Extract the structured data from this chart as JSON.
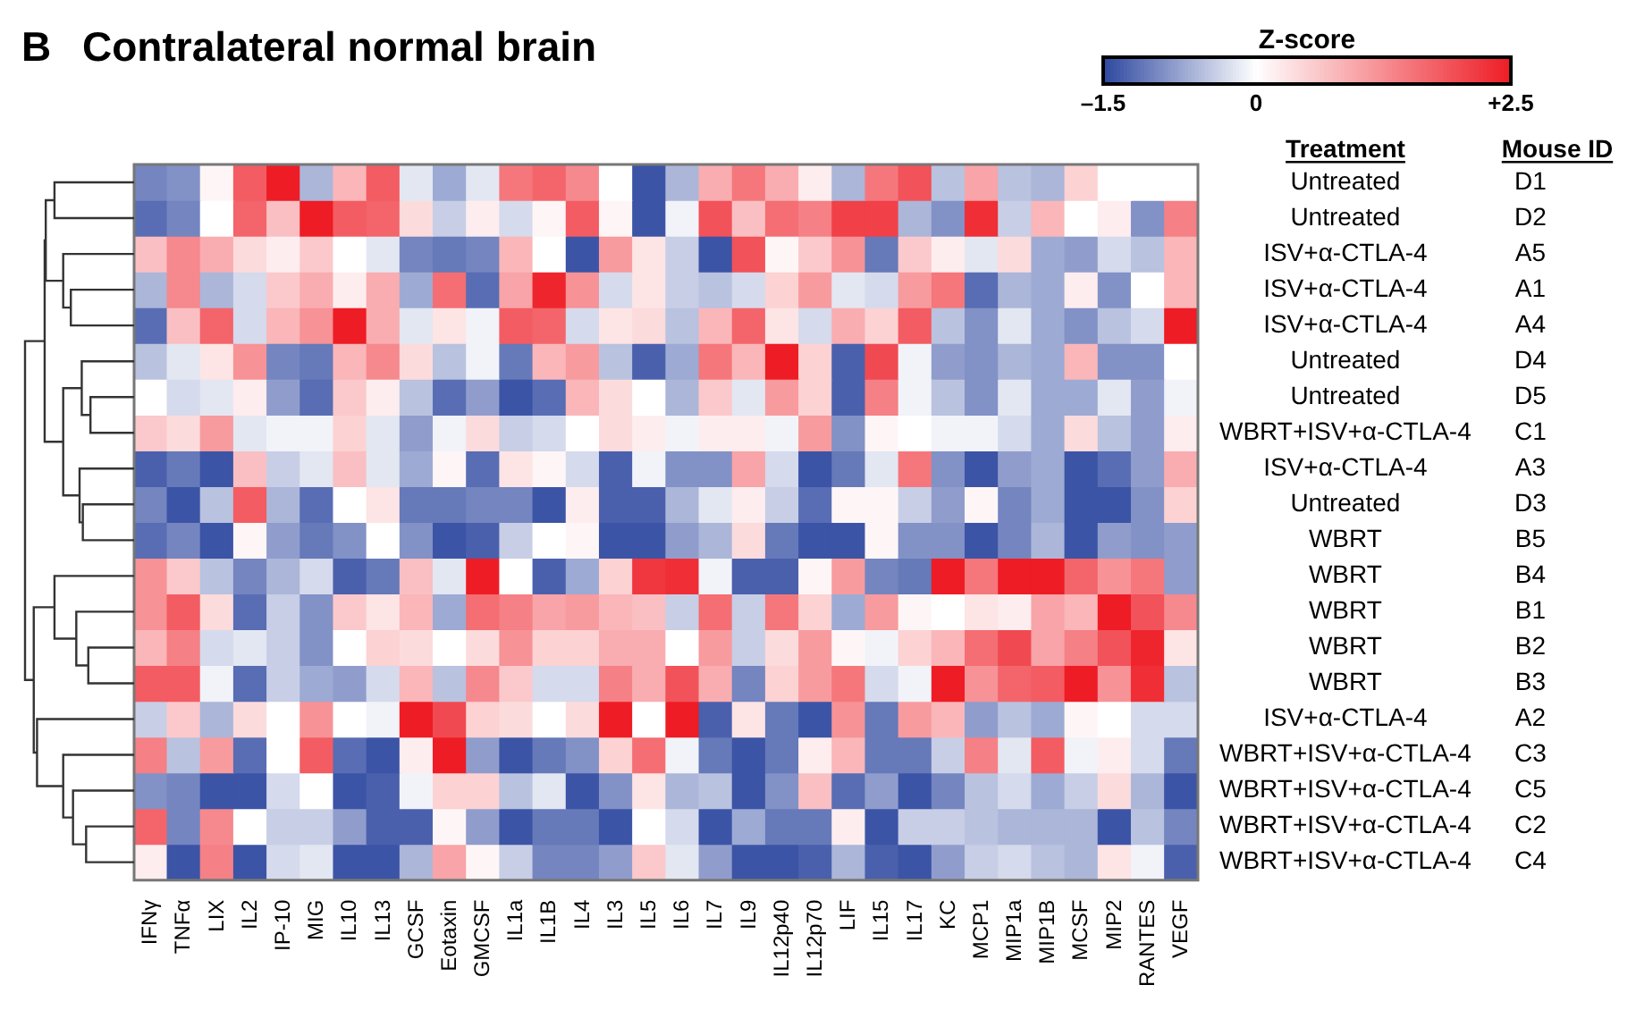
{
  "chart_data": {
    "type": "heatmap",
    "title": "Contralateral normal brain",
    "annotations": [
      "B",
      "Treatment",
      "Mouse ID"
    ],
    "clabel": "Z-score",
    "clim": [
      -1.5,
      2.5
    ],
    "cticks": [
      {
        "value": -1.5,
        "label": "–1.5"
      },
      0,
      {
        "value": 2.5,
        "label": "+2.5"
      }
    ],
    "categories": [
      "IFNγ",
      "TNFα",
      "LIX",
      "IL2",
      "IP-10",
      "MIG",
      "IL10",
      "IL13",
      "GCSF",
      "Eotaxin",
      "GMCSF",
      "IL1a",
      "IL1B",
      "IL4",
      "IL3",
      "IL5",
      "IL6",
      "IL7",
      "IL9",
      "IL12p40",
      "IL12p70",
      "LIF",
      "IL15",
      "IL17",
      "KC",
      "MCP1",
      "MIP1a",
      "MIP1B",
      "MCSF",
      "MIP2",
      "RANTES",
      "VEGF"
    ],
    "y_categories": [
      "Untreated",
      "Untreated",
      "ISV+α-CTLA-4",
      "ISV+α-CTLA-4",
      "ISV+α-CTLA-4",
      "Untreated",
      "Untreated",
      "WBRT+ISV+α-CTLA-4",
      "ISV+α-CTLA-4",
      "Untreated",
      "WBRT",
      "WBRT",
      "WBRT",
      "WBRT",
      "WBRT",
      "ISV+α-CTLA-4",
      "WBRT+ISV+α-CTLA-4",
      "WBRT+ISV+α-CTLA-4",
      "WBRT+ISV+α-CTLA-4",
      "WBRT+ISV+α-CTLA-4"
    ],
    "y2_categories": [
      "D1",
      "D2",
      "A5",
      "A1",
      "A4",
      "D4",
      "D5",
      "C1",
      "A3",
      "D3",
      "B5",
      "B4",
      "B1",
      "B2",
      "B3",
      "A2",
      "C3",
      "C5",
      "C2",
      "C4"
    ],
    "cells": [
      [
        -1.0,
        -0.9,
        0.1,
        1.8,
        2.5,
        -0.6,
        0.8,
        1.8,
        -0.2,
        -0.7,
        -0.2,
        1.5,
        1.7,
        1.3,
        0,
        -1.4,
        -0.6,
        0.9,
        1.5,
        0.9,
        0.2,
        -0.6,
        1.5,
        1.9,
        -0.5,
        1.0,
        -0.5,
        -0.6,
        0.5,
        0,
        0,
        0
      ],
      [
        -1.2,
        -1.0,
        0,
        1.7,
        0.7,
        2.5,
        1.8,
        1.7,
        0.4,
        -0.4,
        0.2,
        -0.3,
        0.1,
        1.8,
        0.1,
        -1.4,
        -0.1,
        1.9,
        0.7,
        1.6,
        1.4,
        2.1,
        2.1,
        -0.6,
        -0.9,
        2.3,
        -0.4,
        0.8,
        0,
        0.2,
        -0.9,
        1.4
      ],
      [
        0.7,
        1.3,
        0.9,
        0.4,
        0.2,
        0.6,
        0,
        -0.2,
        -1.0,
        -1.1,
        -1.0,
        0.8,
        0,
        -1.4,
        1.1,
        0.3,
        -0.4,
        -1.4,
        1.9,
        0.1,
        0.6,
        1.2,
        -1.1,
        0.6,
        0.2,
        -0.2,
        0.4,
        -0.7,
        -0.8,
        -0.3,
        -0.5,
        0.8
      ],
      [
        -0.6,
        1.3,
        -0.6,
        -0.3,
        0.6,
        0.9,
        0.2,
        0.9,
        -0.7,
        1.6,
        -1.2,
        1.0,
        2.4,
        1.2,
        -0.3,
        0.3,
        -0.4,
        -0.5,
        -0.3,
        0.5,
        1.1,
        -0.2,
        -0.3,
        1.1,
        1.5,
        -1.2,
        -0.6,
        -0.7,
        0.2,
        -0.9,
        0,
        0.8
      ],
      [
        -1.2,
        0.7,
        1.7,
        -0.3,
        0.8,
        1.2,
        2.5,
        0.9,
        -0.2,
        0.3,
        -0.1,
        1.8,
        1.7,
        -0.3,
        0.3,
        0.4,
        -0.5,
        0.8,
        1.7,
        0.3,
        -0.3,
        0.9,
        0.5,
        1.8,
        -0.5,
        -0.9,
        -0.2,
        -0.7,
        -0.9,
        -0.5,
        -0.3,
        2.5
      ],
      [
        -0.5,
        -0.2,
        0.3,
        1.2,
        -1.0,
        -1.1,
        0.8,
        1.3,
        0.4,
        -0.5,
        -0.1,
        -1.1,
        0.8,
        1.1,
        -0.5,
        -1.3,
        -0.7,
        1.5,
        0.8,
        2.5,
        0.5,
        -1.3,
        2.0,
        -0.1,
        -0.8,
        -0.9,
        -0.6,
        -0.7,
        0.8,
        -0.9,
        -0.9,
        0
      ],
      [
        0,
        -0.3,
        -0.2,
        0.2,
        -0.8,
        -1.2,
        0.6,
        0.2,
        -0.5,
        -1.2,
        -0.8,
        -1.4,
        -1.2,
        0.8,
        0.4,
        0,
        -0.6,
        0.6,
        -0.2,
        1.1,
        0.5,
        -1.3,
        1.4,
        -0.1,
        -0.5,
        -0.9,
        -0.2,
        -0.7,
        -0.7,
        -0.2,
        -0.8,
        -0.1
      ],
      [
        0.6,
        0.4,
        1.1,
        -0.2,
        -0.1,
        -0.1,
        0.5,
        -0.2,
        -0.8,
        -0.1,
        0.4,
        -0.4,
        -0.3,
        0,
        0.4,
        0.2,
        -0.1,
        0.2,
        0.2,
        -0.1,
        1.1,
        -0.9,
        0.1,
        0,
        -0.1,
        -0.1,
        -0.3,
        -0.7,
        0.4,
        -0.5,
        -0.8,
        0.2
      ],
      [
        -1.3,
        -1.1,
        -1.4,
        0.7,
        -0.4,
        -0.2,
        0.7,
        -0.2,
        -0.7,
        0.1,
        -1.2,
        0.3,
        0.1,
        -0.3,
        -1.3,
        -0.1,
        -0.9,
        -0.9,
        1.0,
        -0.3,
        -1.4,
        -1.1,
        -0.2,
        1.5,
        -0.9,
        -1.4,
        -0.8,
        -0.7,
        -1.4,
        -1.2,
        -0.8,
        0.9
      ],
      [
        -1.0,
        -1.4,
        -0.5,
        1.8,
        -0.6,
        -1.2,
        0,
        0.3,
        -1.1,
        -1.1,
        -1.0,
        -1.0,
        -1.4,
        0.2,
        -1.3,
        -1.3,
        -0.6,
        -0.2,
        0.2,
        -0.4,
        -1.2,
        0.1,
        0.1,
        -0.4,
        -0.8,
        0.1,
        -1.0,
        -0.7,
        -1.4,
        -1.4,
        -0.9,
        0.5
      ],
      [
        -1.2,
        -1.0,
        -1.4,
        0.1,
        -0.8,
        -1.1,
        -0.9,
        0,
        -0.9,
        -1.4,
        -1.3,
        -0.4,
        0,
        0.1,
        -1.4,
        -1.4,
        -0.8,
        -0.6,
        0.4,
        -1.1,
        -1.4,
        -1.4,
        0.1,
        -0.9,
        -0.9,
        -1.4,
        -1.0,
        -0.6,
        -1.4,
        -0.8,
        -0.9,
        -0.8
      ],
      [
        1.2,
        0.6,
        -0.5,
        -1.0,
        -0.6,
        -0.3,
        -1.3,
        -1.1,
        0.7,
        -0.2,
        2.5,
        0,
        -1.3,
        -0.7,
        0.5,
        2.2,
        2.3,
        -0.1,
        -1.3,
        -1.3,
        0.1,
        1.1,
        -1.0,
        -1.1,
        2.5,
        1.5,
        2.5,
        2.5,
        1.7,
        1.2,
        1.5,
        -0.8
      ],
      [
        1.2,
        1.8,
        0.4,
        -1.2,
        -0.4,
        -0.9,
        0.6,
        0.3,
        0.8,
        -0.7,
        1.6,
        1.4,
        1.0,
        1.1,
        0.8,
        0.7,
        -0.4,
        1.6,
        -0.4,
        1.5,
        0.5,
        -0.7,
        1.1,
        0.1,
        0,
        0.3,
        0.2,
        1.0,
        0.8,
        2.5,
        1.9,
        1.3
      ],
      [
        0.8,
        1.4,
        -0.3,
        -0.2,
        -0.4,
        -0.9,
        0,
        0.5,
        0.4,
        0,
        0.4,
        1.2,
        0.5,
        0.5,
        0.9,
        0.9,
        0,
        1.1,
        -0.4,
        0.4,
        1.1,
        0.1,
        -0.1,
        0.5,
        0.8,
        1.6,
        2.0,
        1.0,
        1.4,
        1.9,
        2.4,
        0.3
      ],
      [
        1.8,
        1.8,
        -0.1,
        -1.2,
        -0.4,
        -0.7,
        -0.8,
        -0.3,
        0.8,
        -0.5,
        1.3,
        0.6,
        -0.3,
        -0.3,
        1.4,
        0.9,
        1.9,
        0.9,
        -1.0,
        0.5,
        1.1,
        1.5,
        -0.3,
        -0.1,
        2.5,
        1.2,
        1.7,
        1.8,
        2.5,
        1.2,
        2.3,
        -0.5
      ],
      [
        -0.4,
        0.6,
        -0.6,
        0.4,
        0,
        1.2,
        0,
        -0.1,
        2.5,
        2.0,
        0.5,
        0.4,
        0,
        0.4,
        2.5,
        0,
        2.5,
        -1.3,
        0.3,
        -1.1,
        -1.4,
        1.2,
        -1.1,
        1.1,
        0.8,
        -0.8,
        -0.5,
        -0.7,
        0.1,
        0,
        -0.3,
        -0.3
      ],
      [
        1.4,
        -0.5,
        1.1,
        -1.2,
        0,
        1.8,
        -1.2,
        -1.4,
        0.2,
        2.5,
        -0.8,
        -1.4,
        -1.1,
        -0.9,
        0.5,
        1.6,
        -0.1,
        -1.1,
        -1.4,
        -1.1,
        0.2,
        0.8,
        -1.1,
        -1.1,
        -0.4,
        1.4,
        -0.2,
        1.8,
        -0.1,
        0.2,
        -0.3,
        -1.1
      ],
      [
        -0.9,
        -1.0,
        -1.4,
        -1.4,
        -0.3,
        0,
        -1.4,
        -1.3,
        -0.1,
        0.5,
        0.5,
        -0.5,
        -0.2,
        -1.4,
        -0.9,
        0.3,
        -0.6,
        -0.5,
        -1.4,
        -0.9,
        0.7,
        -1.2,
        -0.8,
        -1.4,
        -1.0,
        -0.5,
        -0.3,
        -0.7,
        -0.4,
        0.4,
        -0.6,
        -1.4
      ],
      [
        1.7,
        -1.0,
        1.3,
        0,
        -0.4,
        -0.4,
        -0.8,
        -1.3,
        -1.3,
        0.1,
        -0.8,
        -1.4,
        -1.1,
        -1.1,
        -1.4,
        0,
        -0.3,
        -1.4,
        -0.7,
        -1.1,
        -1.1,
        0.2,
        -1.4,
        -0.4,
        -0.4,
        -0.5,
        -0.6,
        -0.6,
        -0.6,
        -1.4,
        -0.5,
        -1.0
      ],
      [
        0.2,
        -1.4,
        1.4,
        -1.4,
        -0.3,
        -0.2,
        -1.4,
        -1.4,
        -0.6,
        1.0,
        0.1,
        -0.4,
        -1.0,
        -1.0,
        -0.8,
        0.6,
        -0.2,
        -0.8,
        -1.4,
        -1.4,
        -1.3,
        -0.6,
        -1.3,
        -1.4,
        -0.8,
        -0.4,
        -0.3,
        -0.5,
        -0.6,
        0.3,
        -0.1,
        -1.3
      ]
    ]
  }
}
